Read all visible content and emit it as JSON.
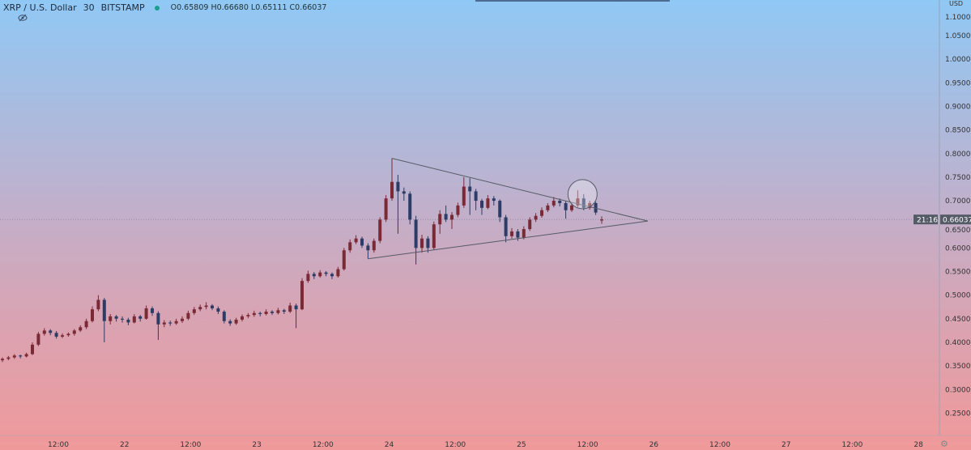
{
  "header": {
    "symbol": "XRP / U.S. Dollar",
    "interval": "30",
    "exchange": "BITSTAMP",
    "status_color": "#1b9e8f",
    "open": "O0.65809",
    "high": "H0.66680",
    "low": "L0.65111",
    "close": "C0.66037",
    "indicator_icon": "eye-off-icon"
  },
  "price_axis": {
    "currency": "USD",
    "current_price": "0.66037",
    "countdown": "21:16"
  },
  "colors": {
    "up": "#7a2a35",
    "down": "#2d3c66",
    "drawing": "#555a66"
  },
  "chart_data": {
    "type": "candlestick",
    "title": "XRP / U.S. Dollar",
    "ylabel": "USD",
    "ylim": [
      0.22,
      1.11
    ],
    "yticks": [
      "1.10000",
      "1.05000",
      "1.00000",
      "0.95000",
      "0.90000",
      "0.85000",
      "0.80000",
      "0.75000",
      "0.70000",
      "0.65000",
      "0.60000",
      "0.55000",
      "0.50000",
      "0.45000",
      "0.40000",
      "0.35000",
      "0.30000",
      "0.25000"
    ],
    "xticks": [
      "12:00",
      "22",
      "12:00",
      "23",
      "12:00",
      "24",
      "12:00",
      "25",
      "12:00",
      "26",
      "12:00",
      "27",
      "12:00",
      "28"
    ],
    "candles_ohlc": [
      [
        0.362,
        0.368,
        0.358,
        0.365
      ],
      [
        0.365,
        0.371,
        0.362,
        0.368
      ],
      [
        0.368,
        0.375,
        0.365,
        0.372
      ],
      [
        0.372,
        0.374,
        0.366,
        0.37
      ],
      [
        0.37,
        0.378,
        0.368,
        0.375
      ],
      [
        0.375,
        0.4,
        0.373,
        0.395
      ],
      [
        0.395,
        0.422,
        0.392,
        0.418
      ],
      [
        0.418,
        0.43,
        0.414,
        0.425
      ],
      [
        0.425,
        0.428,
        0.415,
        0.42
      ],
      [
        0.42,
        0.424,
        0.408,
        0.412
      ],
      [
        0.412,
        0.419,
        0.409,
        0.415
      ],
      [
        0.415,
        0.421,
        0.412,
        0.418
      ],
      [
        0.418,
        0.428,
        0.414,
        0.425
      ],
      [
        0.425,
        0.436,
        0.422,
        0.432
      ],
      [
        0.432,
        0.45,
        0.428,
        0.445
      ],
      [
        0.445,
        0.476,
        0.442,
        0.47
      ],
      [
        0.47,
        0.5,
        0.466,
        0.49
      ],
      [
        0.49,
        0.494,
        0.4,
        0.445
      ],
      [
        0.445,
        0.46,
        0.438,
        0.455
      ],
      [
        0.455,
        0.458,
        0.444,
        0.45
      ],
      [
        0.45,
        0.455,
        0.442,
        0.448
      ],
      [
        0.448,
        0.452,
        0.436,
        0.442
      ],
      [
        0.442,
        0.46,
        0.44,
        0.455
      ],
      [
        0.455,
        0.458,
        0.444,
        0.45
      ],
      [
        0.45,
        0.478,
        0.448,
        0.472
      ],
      [
        0.472,
        0.476,
        0.456,
        0.462
      ],
      [
        0.462,
        0.466,
        0.405,
        0.438
      ],
      [
        0.438,
        0.447,
        0.432,
        0.442
      ],
      [
        0.442,
        0.446,
        0.435,
        0.44
      ],
      [
        0.44,
        0.45,
        0.437,
        0.445
      ],
      [
        0.445,
        0.455,
        0.441,
        0.45
      ],
      [
        0.45,
        0.467,
        0.447,
        0.462
      ],
      [
        0.462,
        0.475,
        0.458,
        0.47
      ],
      [
        0.47,
        0.48,
        0.466,
        0.475
      ],
      [
        0.475,
        0.485,
        0.47,
        0.478
      ],
      [
        0.478,
        0.481,
        0.468,
        0.472
      ],
      [
        0.472,
        0.476,
        0.46,
        0.465
      ],
      [
        0.465,
        0.468,
        0.44,
        0.445
      ],
      [
        0.445,
        0.449,
        0.435,
        0.44
      ],
      [
        0.44,
        0.452,
        0.437,
        0.448
      ],
      [
        0.448,
        0.459,
        0.444,
        0.455
      ],
      [
        0.455,
        0.462,
        0.451,
        0.458
      ],
      [
        0.458,
        0.467,
        0.454,
        0.462
      ],
      [
        0.462,
        0.465,
        0.455,
        0.46
      ],
      [
        0.46,
        0.47,
        0.457,
        0.465
      ],
      [
        0.465,
        0.468,
        0.458,
        0.462
      ],
      [
        0.462,
        0.473,
        0.459,
        0.468
      ],
      [
        0.468,
        0.471,
        0.46,
        0.465
      ],
      [
        0.465,
        0.484,
        0.462,
        0.478
      ],
      [
        0.478,
        0.482,
        0.43,
        0.47
      ],
      [
        0.47,
        0.536,
        0.468,
        0.53
      ],
      [
        0.53,
        0.552,
        0.526,
        0.545
      ],
      [
        0.545,
        0.549,
        0.534,
        0.54
      ],
      [
        0.54,
        0.553,
        0.537,
        0.548
      ],
      [
        0.548,
        0.551,
        0.54,
        0.545
      ],
      [
        0.545,
        0.548,
        0.534,
        0.54
      ],
      [
        0.54,
        0.56,
        0.537,
        0.555
      ],
      [
        0.555,
        0.6,
        0.552,
        0.595
      ],
      [
        0.595,
        0.618,
        0.59,
        0.612
      ],
      [
        0.612,
        0.627,
        0.608,
        0.62
      ],
      [
        0.62,
        0.624,
        0.6,
        0.605
      ],
      [
        0.605,
        0.61,
        0.577,
        0.595
      ],
      [
        0.595,
        0.62,
        0.59,
        0.615
      ],
      [
        0.615,
        0.665,
        0.61,
        0.66
      ],
      [
        0.66,
        0.712,
        0.655,
        0.705
      ],
      [
        0.705,
        0.79,
        0.7,
        0.74
      ],
      [
        0.74,
        0.755,
        0.63,
        0.72
      ],
      [
        0.72,
        0.728,
        0.7,
        0.715
      ],
      [
        0.715,
        0.72,
        0.65,
        0.66
      ],
      [
        0.66,
        0.668,
        0.565,
        0.6
      ],
      [
        0.6,
        0.628,
        0.59,
        0.62
      ],
      [
        0.62,
        0.625,
        0.59,
        0.6
      ],
      [
        0.6,
        0.656,
        0.596,
        0.65
      ],
      [
        0.65,
        0.68,
        0.63,
        0.672
      ],
      [
        0.672,
        0.69,
        0.655,
        0.66
      ],
      [
        0.66,
        0.676,
        0.64,
        0.67
      ],
      [
        0.67,
        0.696,
        0.665,
        0.69
      ],
      [
        0.69,
        0.75,
        0.685,
        0.73
      ],
      [
        0.73,
        0.748,
        0.67,
        0.72
      ],
      [
        0.72,
        0.725,
        0.68,
        0.7
      ],
      [
        0.7,
        0.704,
        0.67,
        0.685
      ],
      [
        0.685,
        0.712,
        0.682,
        0.705
      ],
      [
        0.705,
        0.71,
        0.69,
        0.7
      ],
      [
        0.7,
        0.703,
        0.655,
        0.665
      ],
      [
        0.665,
        0.67,
        0.612,
        0.625
      ],
      [
        0.625,
        0.642,
        0.62,
        0.635
      ],
      [
        0.635,
        0.64,
        0.615,
        0.622
      ],
      [
        0.622,
        0.646,
        0.618,
        0.64
      ],
      [
        0.64,
        0.665,
        0.636,
        0.66
      ],
      [
        0.66,
        0.674,
        0.655,
        0.668
      ],
      [
        0.668,
        0.686,
        0.664,
        0.68
      ],
      [
        0.68,
        0.695,
        0.676,
        0.69
      ],
      [
        0.69,
        0.708,
        0.686,
        0.7
      ],
      [
        0.7,
        0.705,
        0.688,
        0.695
      ],
      [
        0.695,
        0.699,
        0.662,
        0.68
      ],
      [
        0.68,
        0.695,
        0.676,
        0.69
      ],
      [
        0.69,
        0.722,
        0.686,
        0.705
      ],
      [
        0.705,
        0.714,
        0.68,
        0.685
      ],
      [
        0.685,
        0.7,
        0.681,
        0.695
      ],
      [
        0.695,
        0.698,
        0.67,
        0.675
      ],
      [
        0.65809,
        0.6668,
        0.65111,
        0.66037
      ]
    ],
    "drawings": {
      "triangle_upper": {
        "from": {
          "bar": 65,
          "price": 0.79
        },
        "to": {
          "bar": 107.7,
          "price": 0.657
        }
      },
      "triangle_lower": {
        "from": {
          "bar": 61,
          "price": 0.577
        },
        "to": {
          "bar": 107.7,
          "price": 0.657
        }
      },
      "circle_highlight": {
        "bar": 96.8,
        "price": 0.714
      }
    },
    "grid": false
  }
}
